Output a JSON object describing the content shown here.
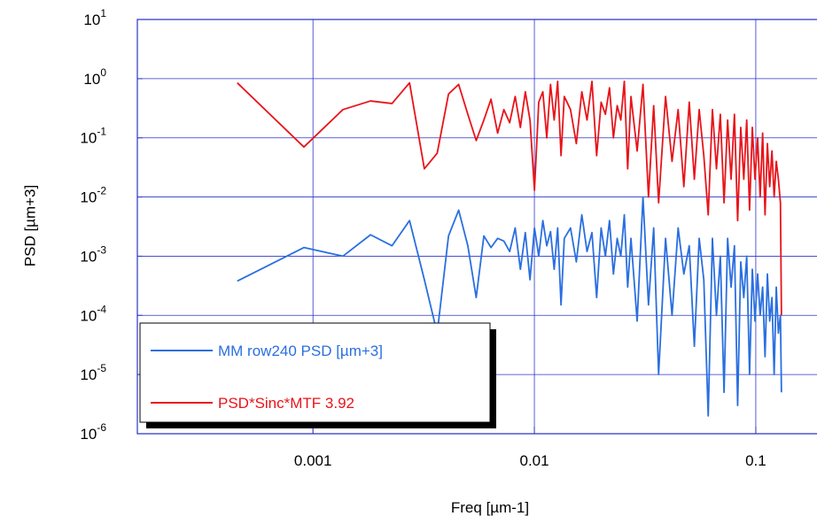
{
  "chart_data": {
    "type": "line",
    "xlabel": "Freq [µm-1]",
    "ylabel": "PSD [µm+3]",
    "xscale": "log",
    "yscale": "log",
    "grid": true,
    "legend": "lower left",
    "xlim": [
      0.000161,
      0.189
    ],
    "xticks": [
      0.001,
      0.01,
      0.1
    ],
    "ylim": [
      1e-06,
      10
    ],
    "yticks": [
      {
        "value": 10,
        "label": "10",
        "exponent": "1"
      },
      {
        "value": 1,
        "label": "10",
        "exponent": "0"
      },
      {
        "value": 0.1,
        "label": "10",
        "exponent": "-1"
      },
      {
        "value": 0.01,
        "label": "10",
        "exponent": "-2"
      },
      {
        "value": 0.001,
        "label": "10",
        "exponent": "-3"
      },
      {
        "value": 0.0001,
        "label": "10",
        "exponent": "-4"
      },
      {
        "value": 1e-05,
        "label": "10",
        "exponent": "-5"
      },
      {
        "value": 1e-06,
        "label": "10",
        "exponent": "-6"
      }
    ],
    "x": [
      0.000455,
      0.00091,
      0.001365,
      0.00182,
      0.002275,
      0.00273,
      0.003185,
      0.00364,
      0.004095,
      0.00455,
      0.005005,
      0.00546,
      0.005915,
      0.00637,
      0.006825,
      0.00728,
      0.007735,
      0.00819,
      0.008645,
      0.0091,
      0.009555,
      0.01001,
      0.010465,
      0.01092,
      0.011375,
      0.01183,
      0.012285,
      0.01274,
      0.013195,
      0.01365,
      0.01456,
      0.01547,
      0.01638,
      0.01729,
      0.0182,
      0.01911,
      0.02002,
      0.02093,
      0.02184,
      0.02275,
      0.02366,
      0.02457,
      0.02548,
      0.02639,
      0.0273,
      0.02912,
      0.03094,
      0.03276,
      0.03458,
      0.0364,
      0.03913,
      0.04186,
      0.04459,
      0.04732,
      0.05005,
      0.05278,
      0.05551,
      0.05824,
      0.06097,
      0.0637,
      0.06643,
      0.06916,
      0.07189,
      0.07462,
      0.07735,
      0.08008,
      0.08281,
      0.08554,
      0.08827,
      0.091,
      0.09373,
      0.09646,
      0.09919,
      0.10192,
      0.10465,
      0.10738,
      0.11011,
      0.11284,
      0.11557,
      0.1183,
      0.12103,
      0.12376,
      0.12649,
      0.12922,
      0.130585
    ],
    "series": [
      {
        "name": "MM row240 PSD [µm+3]",
        "color": "#2a6fe0",
        "values": [
          0.00038,
          0.0014,
          0.001,
          0.0023,
          0.0015,
          0.004,
          0.0004,
          5e-05,
          0.0022,
          0.006,
          0.0015,
          0.0002,
          0.0022,
          0.0014,
          0.002,
          0.0018,
          0.0012,
          0.003,
          0.0006,
          0.0025,
          0.0004,
          0.003,
          0.001,
          0.004,
          0.0015,
          0.0026,
          0.0006,
          0.003,
          0.00015,
          0.002,
          0.003,
          0.0008,
          0.005,
          0.0012,
          0.0025,
          0.0002,
          0.003,
          0.001,
          0.004,
          0.0005,
          0.002,
          0.001,
          0.005,
          0.0003,
          0.002,
          8e-05,
          0.01,
          0.00015,
          0.003,
          1e-05,
          0.002,
          0.0001,
          0.003,
          0.0005,
          0.0015,
          3e-05,
          0.002,
          0.0004,
          2e-06,
          0.002,
          0.0001,
          0.001,
          5e-06,
          0.002,
          0.0003,
          0.0015,
          3e-06,
          0.0008,
          0.0002,
          0.001,
          1e-05,
          0.0006,
          8e-05,
          0.0005,
          0.0001,
          0.0003,
          2e-05,
          0.0005,
          8e-05,
          0.0002,
          1e-05,
          0.0003,
          5e-05,
          0.0001,
          5e-06
        ]
      },
      {
        "name": "PSD*Sinc*MTF 3.92",
        "color": "#e8141a",
        "values": [
          0.85,
          0.07,
          0.3,
          0.42,
          0.38,
          0.85,
          0.03,
          0.055,
          0.55,
          0.8,
          0.25,
          0.09,
          0.2,
          0.45,
          0.12,
          0.3,
          0.18,
          0.5,
          0.15,
          0.6,
          0.2,
          0.013,
          0.4,
          0.6,
          0.1,
          0.8,
          0.2,
          0.9,
          0.05,
          0.5,
          0.3,
          0.08,
          0.6,
          0.2,
          0.9,
          0.05,
          0.4,
          0.25,
          0.7,
          0.1,
          0.35,
          0.2,
          0.9,
          0.03,
          0.5,
          0.06,
          0.8,
          0.01,
          0.35,
          0.008,
          0.5,
          0.04,
          0.3,
          0.015,
          0.4,
          0.02,
          0.3,
          0.05,
          0.005,
          0.3,
          0.03,
          0.25,
          0.008,
          0.2,
          0.02,
          0.25,
          0.004,
          0.15,
          0.02,
          0.2,
          0.006,
          0.15,
          0.02,
          0.1,
          0.01,
          0.12,
          0.005,
          0.08,
          0.015,
          0.06,
          0.01,
          0.04,
          0.02,
          0.008,
          0.0001
        ]
      }
    ]
  }
}
